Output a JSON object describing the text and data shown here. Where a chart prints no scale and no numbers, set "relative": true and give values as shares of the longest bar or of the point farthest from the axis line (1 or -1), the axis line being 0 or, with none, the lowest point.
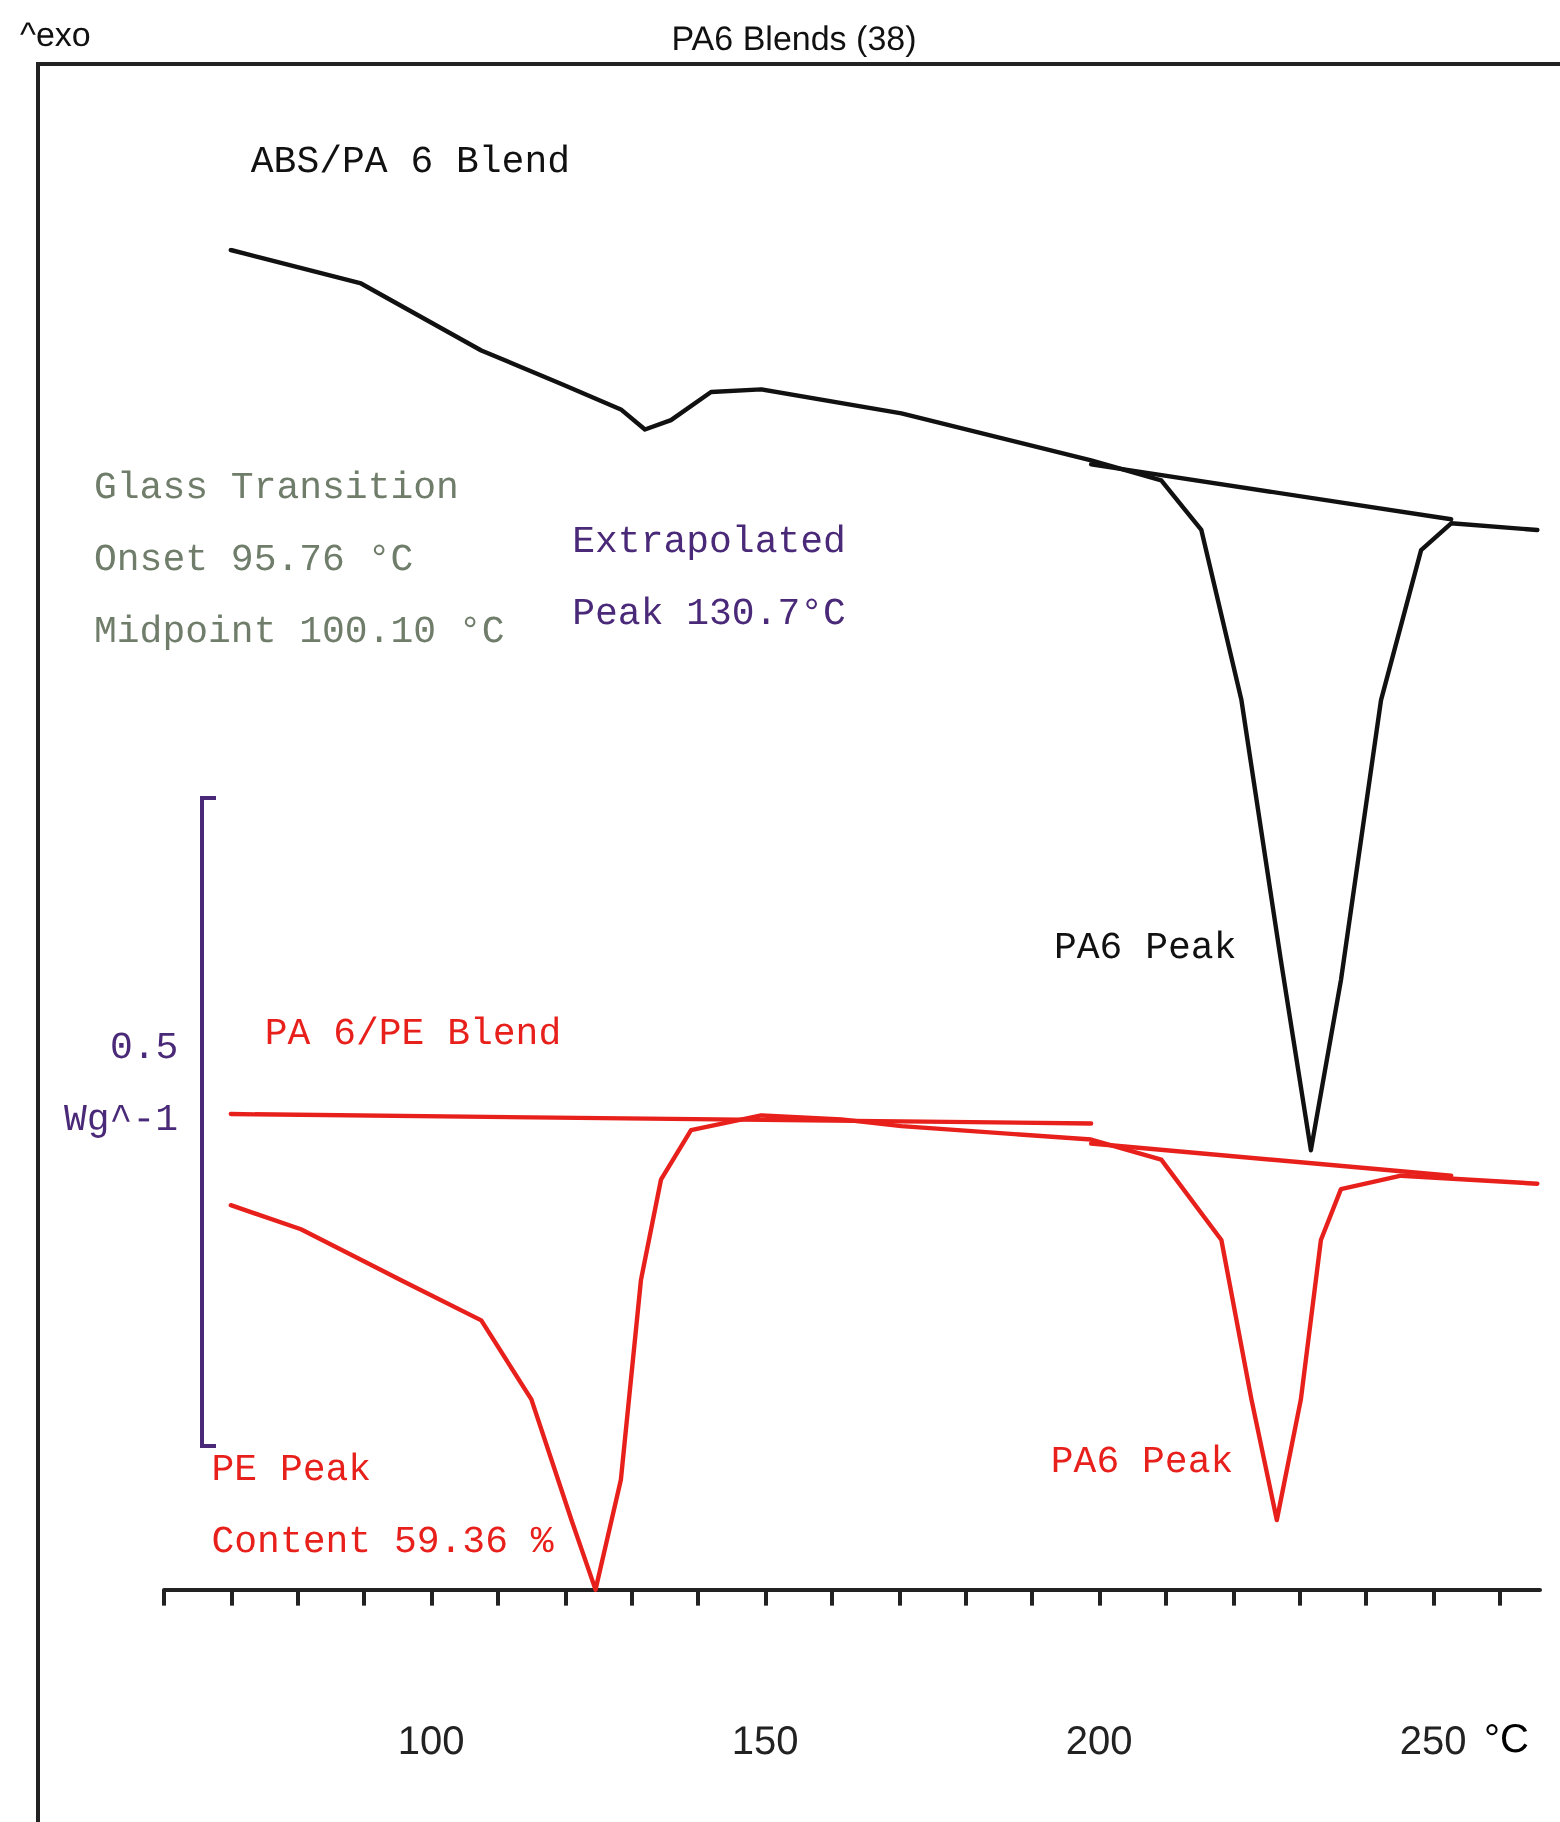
{
  "chart_data": {
    "type": "line",
    "title": "PA6 Blends (38)",
    "xlabel": "°C",
    "relative": true,
    "legend": false,
    "grid": false,
    "marker": "none",
    "line_style": "solid",
    "xlim": [
      60,
      266
    ],
    "xticks": [
      {
        "value": 60,
        "label": null
      },
      {
        "value": 70,
        "label": null
      },
      {
        "value": 80,
        "label": null
      },
      {
        "value": 90,
        "label": null
      },
      100,
      {
        "value": 110,
        "label": null
      },
      {
        "value": 120,
        "label": null
      },
      {
        "value": 130,
        "label": null
      },
      {
        "value": 140,
        "label": null
      },
      150,
      {
        "value": 160,
        "label": null
      },
      {
        "value": 170,
        "label": null
      },
      {
        "value": 180,
        "label": null
      },
      {
        "value": 190,
        "label": null
      },
      200,
      {
        "value": 210,
        "label": null
      },
      {
        "value": 220,
        "label": null
      },
      {
        "value": 230,
        "label": null
      },
      {
        "value": 240,
        "label": null
      },
      250,
      {
        "value": 260,
        "label": null
      }
    ],
    "series": [
      {
        "name": "ABS/PA 6 Blend",
        "color": "#111111",
        "x": [
          70,
          89.5,
          107.5,
          119.5,
          128.4,
          132,
          135.9,
          141.9,
          149.4,
          170.4,
          198.8,
          209.3,
          215.3,
          221.3,
          227.2,
          231.7,
          236.2,
          242.2,
          248.2,
          252.7,
          265.6
        ],
        "values": [
          1.0,
          0.975,
          0.925,
          0.9,
          0.881,
          0.866,
          0.873,
          0.894,
          0.896,
          0.878,
          0.843,
          0.828,
          0.791,
          0.664,
          0.47,
          0.328,
          0.455,
          0.664,
          0.776,
          0.796,
          0.791
        ]
      },
      {
        "color": "#111111",
        "x": [
          198.8,
          252.7
        ],
        "values": [
          0.84,
          0.799
        ]
      },
      {
        "name": "PA 6/PE Blend",
        "color": "#e8201c",
        "x": [
          70,
          80.5,
          95.5,
          107.5,
          115,
          121,
          124.6,
          128.4,
          131.4,
          134.4,
          138.9,
          149.4,
          161.4,
          170.4,
          198.8,
          209.3,
          218.3,
          222.8,
          226.6,
          230.2,
          233.2,
          236.2,
          245.2,
          265.6
        ],
        "values": [
          0.287,
          0.269,
          0.231,
          0.201,
          0.142,
          0.052,
          0,
          0.082,
          0.231,
          0.306,
          0.343,
          0.354,
          0.351,
          0.346,
          0.336,
          0.321,
          0.261,
          0.142,
          0.052,
          0.142,
          0.261,
          0.299,
          0.309,
          0.303
        ]
      },
      {
        "color": "#e8201c",
        "x": [
          70,
          198.8
        ],
        "values": [
          0.355,
          0.348
        ]
      },
      {
        "color": "#e8201c",
        "x": [
          198.8,
          252.7
        ],
        "values": [
          0.333,
          0.309
        ]
      }
    ],
    "annotations": [
      "^exo",
      "Glass Transition",
      "Onset 95.76 °C",
      "Midpoint 100.10 °C",
      {
        "text": "Extrapolated\nPeak 130.7°C",
        "x": 130.7,
        "y": 0.866
      },
      "PA6 Peak",
      {
        "text": "PA6 Peak",
        "x": 226.6,
        "y": 0.052
      },
      {
        "text": "PE Peak\nContent 59.36 %",
        "x": 124.6,
        "y": 0
      },
      "0.5",
      "Wg^-1"
    ]
  }
}
